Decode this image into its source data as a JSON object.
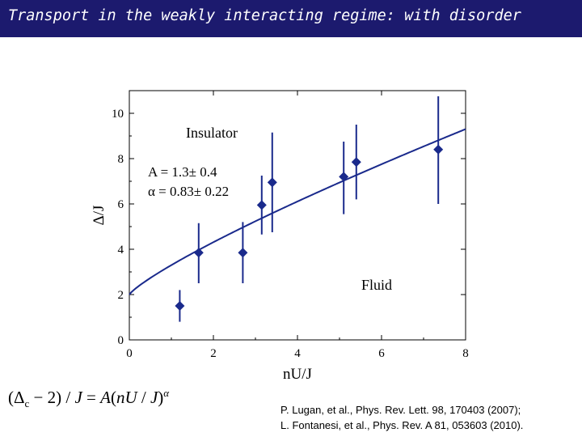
{
  "slide": {
    "title": "Transport in the weakly interacting regime: with disorder",
    "formula": "(Δc − 2) / J = A(nU / J)^α",
    "references": [
      "P. Lugan, et al., Phys. Rev. Lett. 98, 170403 (2007);",
      "L. Fontanesi, et al., Phys. Rev. A 81, 053603 (2010)."
    ]
  },
  "colors": {
    "title_bar": "#1c1a6e",
    "data": "#1a2a8c"
  },
  "chart_data": {
    "type": "scatter",
    "xlabel": "nU/J",
    "ylabel": "Δ/J",
    "xlim": [
      0,
      8
    ],
    "ylim": [
      0,
      11
    ],
    "xticks": [
      0,
      2,
      4,
      6,
      8
    ],
    "yticks": [
      0,
      2,
      4,
      6,
      8,
      10
    ],
    "grid": false,
    "annotations": {
      "region_top": "Insulator",
      "region_bottom": "Fluid",
      "fit_A": "A = 1.3± 0.4",
      "fit_alpha": "α = 0.83± 0.22"
    },
    "points": [
      {
        "x": 1.2,
        "y": 1.5,
        "ylow": 0.8,
        "yhigh": 2.2
      },
      {
        "x": 1.65,
        "y": 3.85,
        "ylow": 2.5,
        "yhigh": 5.15
      },
      {
        "x": 2.7,
        "y": 3.85,
        "ylow": 2.5,
        "yhigh": 5.2
      },
      {
        "x": 3.15,
        "y": 5.95,
        "ylow": 4.65,
        "yhigh": 7.25
      },
      {
        "x": 3.4,
        "y": 6.95,
        "ylow": 4.75,
        "yhigh": 9.15
      },
      {
        "x": 5.1,
        "y": 7.2,
        "ylow": 5.55,
        "yhigh": 8.75
      },
      {
        "x": 5.4,
        "y": 7.85,
        "ylow": 6.2,
        "yhigh": 9.5
      },
      {
        "x": 7.35,
        "y": 8.4,
        "ylow": 6.0,
        "yhigh": 10.75
      }
    ],
    "fit": {
      "A": 1.3,
      "alpha": 0.83,
      "offset": 2
    }
  }
}
